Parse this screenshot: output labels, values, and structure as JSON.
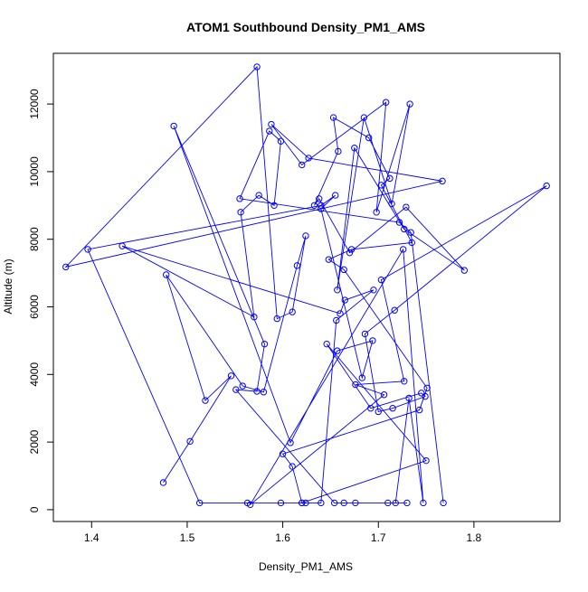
{
  "chart_data": {
    "type": "line",
    "title": "ATOM1 Southbound Density_PM1_AMS",
    "xlabel": "Density_PM1_AMS",
    "ylabel": "Altitude (m)",
    "xlim": [
      1.36,
      1.89
    ],
    "ylim": [
      -350,
      13500
    ],
    "x_ticks": [
      1.4,
      1.5,
      1.6,
      1.7,
      1.8
    ],
    "x_tick_labels": [
      "1.4",
      "1.5",
      "1.6",
      "1.7",
      "1.8"
    ],
    "y_ticks": [
      0,
      2000,
      4000,
      6000,
      8000,
      10000,
      12000
    ],
    "y_tick_labels": [
      "0",
      "2000",
      "4000",
      "6000",
      "8000",
      "10000",
      "12000"
    ],
    "marker": "open-circle",
    "grid": false,
    "legend": "none",
    "colors": {
      "series": "#0000ff",
      "axes": "#000000",
      "background": "#ffffff"
    },
    "series": [
      {
        "x": [
          1.475,
          1.503,
          1.546,
          1.519,
          1.478,
          1.558,
          1.58,
          1.615,
          1.624,
          1.61,
          1.594,
          1.573,
          1.373,
          1.767,
          1.627,
          1.588,
          1.62,
          1.708,
          1.698,
          1.733,
          1.714,
          1.685,
          1.657,
          1.675,
          1.727,
          1.79,
          1.729,
          1.67,
          1.638,
          1.633,
          1.658,
          1.653,
          1.69,
          1.712,
          1.703,
          1.735,
          1.672,
          1.648,
          1.664,
          1.751,
          1.743,
          1.6,
          1.61,
          1.62,
          1.75,
          1.646,
          1.692,
          1.745,
          1.749,
          1.715,
          1.7,
          1.686,
          1.717,
          1.876,
          1.703,
          1.727,
          1.676,
          1.706,
          1.566,
          1.726,
          1.747,
          1.732,
          1.718,
          1.73,
          1.71,
          1.676,
          1.664,
          1.654,
          1.551,
          1.573,
          1.581,
          1.486,
          1.608,
          1.657,
          1.694,
          1.683,
          1.64,
          1.655,
          1.64,
          1.396,
          1.513,
          1.563,
          1.624,
          1.598,
          1.62,
          1.64,
          1.656,
          1.695,
          1.665,
          1.66,
          1.432,
          1.57,
          1.556,
          1.575,
          1.591,
          1.598,
          1.586,
          1.555,
          1.722,
          1.734,
          1.768
        ],
        "y": [
          800,
          2020,
          3960,
          3230,
          6950,
          3660,
          3480,
          7220,
          8100,
          5850,
          5650,
          13100,
          7180,
          9720,
          10400,
          11400,
          10200,
          12050,
          8800,
          12000,
          9050,
          11600,
          6500,
          10700,
          8300,
          7080,
          8950,
          7600,
          9200,
          9000,
          10600,
          11600,
          11000,
          9800,
          9600,
          7900,
          7700,
          7400,
          7100,
          3600,
          2950,
          1650,
          1280,
          200,
          1450,
          4900,
          3000,
          3450,
          3350,
          3000,
          2900,
          5200,
          5900,
          9580,
          6800,
          3800,
          3700,
          3400,
          150,
          7700,
          200,
          3300,
          200,
          200,
          200,
          200,
          200,
          200,
          3550,
          3500,
          4900,
          11350,
          1980,
          4700,
          5000,
          3900,
          8900,
          9300,
          9000,
          7700,
          200,
          200,
          200,
          200,
          200,
          200,
          5600,
          6500,
          6200,
          5800,
          7800,
          5700,
          8800,
          9300,
          9000,
          10900,
          11200,
          9200,
          8500,
          8200,
          200
        ]
      }
    ]
  }
}
